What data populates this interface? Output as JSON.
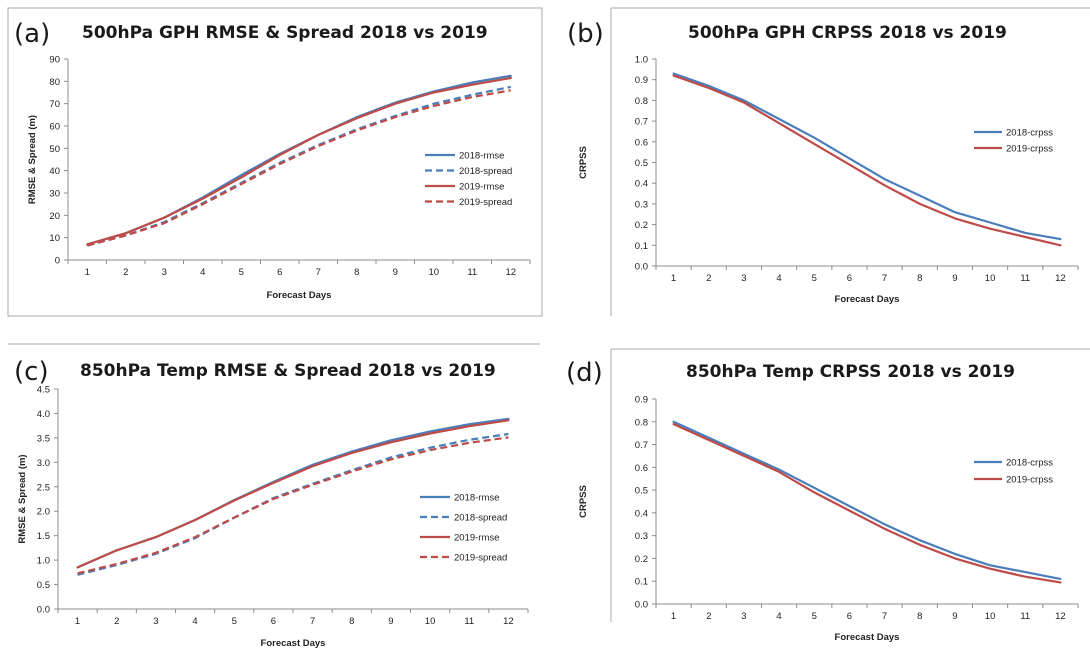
{
  "colors": {
    "blue": "#4a7ebb",
    "red": "#be4b48"
  },
  "chart_data": [
    {
      "panel": "(a)",
      "type": "line",
      "title": "500hPa GPH RMSE & Spread 2018 vs 2019",
      "xlabel": "Forecast Days",
      "ylabel": "RMSE & Spread (m)",
      "categories": [
        "1",
        "2",
        "3",
        "4",
        "5",
        "6",
        "7",
        "8",
        "9",
        "10",
        "11",
        "12"
      ],
      "yticks": [
        "0",
        "10",
        "20",
        "30",
        "40",
        "50",
        "60",
        "70",
        "80",
        "90"
      ],
      "ylim": [
        0,
        90
      ],
      "legend_position": "right",
      "series": [
        {
          "name": "2018-rmse",
          "color": "blue",
          "dash": false,
          "values": [
            7.0,
            12.0,
            19.0,
            28.0,
            38.0,
            47.5,
            56.0,
            64.0,
            70.5,
            75.5,
            79.5,
            82.5
          ]
        },
        {
          "name": "2018-spread",
          "color": "blue",
          "dash": true,
          "values": [
            6.5,
            11.0,
            17.0,
            25.5,
            34.5,
            43.5,
            51.5,
            58.5,
            64.5,
            70.0,
            74.0,
            77.5
          ]
        },
        {
          "name": "2019-rmse",
          "color": "red",
          "dash": false,
          "values": [
            7.0,
            12.0,
            19.0,
            27.5,
            37.0,
            47.0,
            56.0,
            63.5,
            70.0,
            75.0,
            78.5,
            81.5
          ]
        },
        {
          "name": "2019-spread",
          "color": "red",
          "dash": true,
          "values": [
            6.5,
            11.0,
            16.5,
            25.0,
            34.0,
            43.0,
            51.0,
            58.0,
            64.0,
            69.0,
            73.0,
            76.0
          ]
        }
      ]
    },
    {
      "panel": "(b)",
      "type": "line",
      "title": "500hPa GPH CRPSS 2018 vs 2019",
      "xlabel": "Forecast Days",
      "ylabel": "CRPSS",
      "categories": [
        "1",
        "2",
        "3",
        "4",
        "5",
        "6",
        "7",
        "8",
        "9",
        "10",
        "11",
        "12"
      ],
      "yticks": [
        "0.0",
        "0.1",
        "0.2",
        "0.3",
        "0.4",
        "0.5",
        "0.6",
        "0.7",
        "0.8",
        "0.9",
        "1.0"
      ],
      "ylim": [
        0,
        1.0
      ],
      "legend_position": "right",
      "series": [
        {
          "name": "2018-crpss",
          "color": "blue",
          "dash": false,
          "values": [
            0.93,
            0.87,
            0.8,
            0.71,
            0.62,
            0.52,
            0.42,
            0.34,
            0.26,
            0.21,
            0.16,
            0.13
          ]
        },
        {
          "name": "2019-crpss",
          "color": "red",
          "dash": false,
          "values": [
            0.92,
            0.86,
            0.79,
            0.69,
            0.59,
            0.49,
            0.39,
            0.3,
            0.23,
            0.18,
            0.14,
            0.1
          ]
        }
      ]
    },
    {
      "panel": "(c)",
      "type": "line",
      "title": "850hPa Temp RMSE & Spread 2018 vs 2019",
      "xlabel": "Forecast Days",
      "ylabel": "RMSE & Spread (m)",
      "categories": [
        "1",
        "2",
        "3",
        "4",
        "5",
        "6",
        "7",
        "8",
        "9",
        "10",
        "11",
        "12"
      ],
      "yticks": [
        "0.0",
        "0.5",
        "1.0",
        "1.5",
        "2.0",
        "2.5",
        "3.0",
        "3.5",
        "4.0",
        "4.5"
      ],
      "ylim": [
        0,
        4.5
      ],
      "legend_position": "right",
      "series": [
        {
          "name": "2018-rmse",
          "color": "blue",
          "dash": false,
          "values": [
            0.85,
            1.2,
            1.47,
            1.82,
            2.23,
            2.6,
            2.95,
            3.22,
            3.45,
            3.63,
            3.78,
            3.89
          ]
        },
        {
          "name": "2018-spread",
          "color": "blue",
          "dash": true,
          "values": [
            0.7,
            0.9,
            1.13,
            1.45,
            1.87,
            2.27,
            2.56,
            2.84,
            3.1,
            3.3,
            3.46,
            3.58
          ]
        },
        {
          "name": "2019-rmse",
          "color": "red",
          "dash": false,
          "values": [
            0.85,
            1.2,
            1.47,
            1.82,
            2.22,
            2.58,
            2.92,
            3.19,
            3.41,
            3.59,
            3.74,
            3.86
          ]
        },
        {
          "name": "2019-spread",
          "color": "red",
          "dash": true,
          "values": [
            0.73,
            0.92,
            1.15,
            1.47,
            1.87,
            2.25,
            2.54,
            2.81,
            3.06,
            3.25,
            3.4,
            3.51
          ]
        }
      ]
    },
    {
      "panel": "(d)",
      "type": "line",
      "title": "850hPa Temp CRPSS 2018 vs 2019",
      "xlabel": "Forecast Days",
      "ylabel": "CRPSS",
      "categories": [
        "1",
        "2",
        "3",
        "4",
        "5",
        "6",
        "7",
        "8",
        "9",
        "10",
        "11",
        "12"
      ],
      "yticks": [
        "0.0",
        "0.1",
        "0.2",
        "0.3",
        "0.4",
        "0.5",
        "0.6",
        "0.7",
        "0.8",
        "0.9"
      ],
      "ylim": [
        0,
        0.9
      ],
      "legend_position": "right",
      "series": [
        {
          "name": "2018-crpss",
          "color": "blue",
          "dash": false,
          "values": [
            0.8,
            0.73,
            0.66,
            0.59,
            0.51,
            0.43,
            0.35,
            0.28,
            0.22,
            0.17,
            0.14,
            0.11
          ]
        },
        {
          "name": "2019-crpss",
          "color": "red",
          "dash": false,
          "values": [
            0.79,
            0.72,
            0.65,
            0.58,
            0.49,
            0.41,
            0.33,
            0.26,
            0.2,
            0.155,
            0.12,
            0.095
          ]
        }
      ]
    }
  ]
}
